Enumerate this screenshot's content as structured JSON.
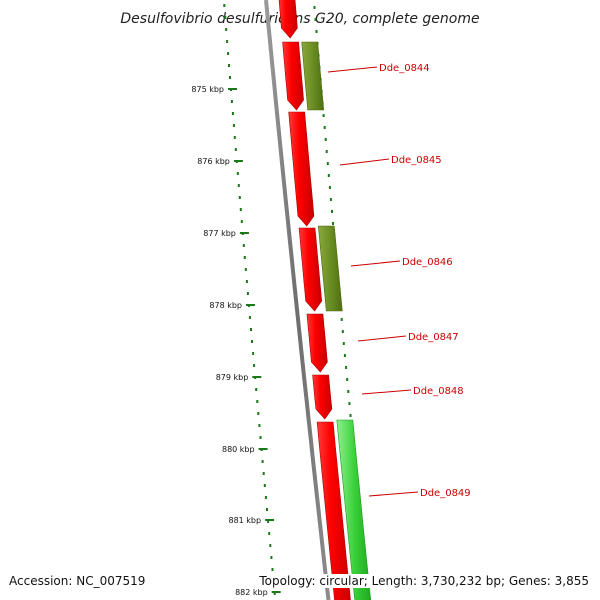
{
  "title": "Desulfovibrio desulfuricans G20, complete genome",
  "footer": {
    "accession": "Accession: NC_007519",
    "stats": "Topology: circular; Length: 3,730,232 bp; Genes: 3,855"
  },
  "ticks": [
    {
      "label": "875 kbp"
    },
    {
      "label": "876 kbp"
    },
    {
      "label": "877 kbp"
    },
    {
      "label": "878 kbp"
    },
    {
      "label": "879 kbp"
    },
    {
      "label": "880 kbp"
    },
    {
      "label": "881 kbp"
    },
    {
      "label": "882 kbp"
    }
  ],
  "genes": [
    {
      "name": "Dde_0844"
    },
    {
      "name": "Dde_0845"
    },
    {
      "name": "Dde_0846"
    },
    {
      "name": "Dde_0847"
    },
    {
      "name": "Dde_0848"
    },
    {
      "name": "Dde_0849"
    }
  ],
  "colors": {
    "backbone": "#7a7a7a",
    "cds_strand": "#ff0000",
    "cds_strand_dark": "#c00000",
    "feature_olive": "#6b8e23",
    "feature_green": "#3ad13a",
    "tick": "#1a7a1a",
    "label": "#cc0000",
    "leader": "#cc0000"
  }
}
